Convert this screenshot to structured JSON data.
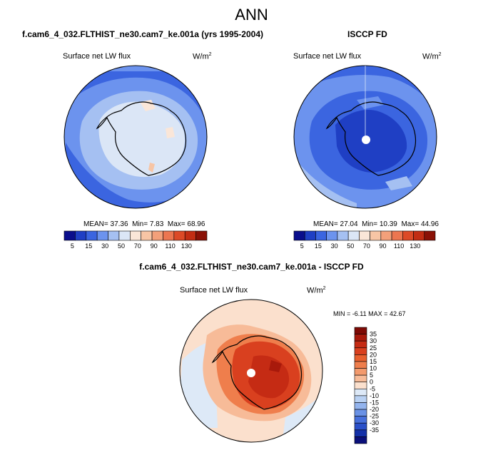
{
  "title": "ANN",
  "left_panel": {
    "case_title": "f.cam6_4_032.FLTHIST_ne30.cam7_ke.001a (yrs 1995-2004)",
    "variable": "Surface net LW flux",
    "units": "W/m",
    "units_exp": "2",
    "stats": {
      "mean_label": "MEAN=",
      "mean": "37.36",
      "min_label": "Min=",
      "min": "7.83",
      "max_label": "Max=",
      "max": "68.96"
    }
  },
  "right_panel": {
    "case_title": "ISCCP FD",
    "variable": "Surface net LW flux",
    "units": "W/m",
    "units_exp": "2",
    "stats": {
      "mean_label": "MEAN=",
      "mean": "27.04",
      "min_label": "Min=",
      "min": "10.39",
      "max_label": "Max=",
      "max": "44.96"
    }
  },
  "diff_panel": {
    "case_title": "f.cam6_4_032.FLTHIST_ne30.cam7_ke.001a - ISCCP FD",
    "variable": "Surface net LW flux",
    "units": "W/m",
    "units_exp": "2",
    "stats": {
      "min_label": "MIN =",
      "min": "-6.11",
      "max_label": "MAX =",
      "max": "42.67"
    }
  },
  "chart_data": [
    {
      "type": "heatmap",
      "projection": "south polar stereographic",
      "title": "f.cam6_4_032.FLTHIST_ne30.cam7_ke.001a (yrs 1995-2004)",
      "variable": "Surface net LW flux",
      "units": "W/m2",
      "colorbar": {
        "orientation": "horizontal",
        "levels": [
          5,
          15,
          30,
          50,
          70,
          90,
          110,
          130
        ],
        "tick_labels": [
          "5",
          "15",
          "30",
          "50",
          "70",
          "90",
          "110",
          "130"
        ],
        "colors": [
          "#0a0e8c",
          "#1f3fc4",
          "#3b65e0",
          "#6c93ee",
          "#a5c0f2",
          "#dbe6f6",
          "#fae6d8",
          "#f7c5a5",
          "#f3a07a",
          "#ec7650",
          "#dc4a27",
          "#c22d13",
          "#8a1106"
        ]
      },
      "mean": 37.36,
      "min": 7.83,
      "max": 68.96
    },
    {
      "type": "heatmap",
      "projection": "south polar stereographic",
      "title": "ISCCP FD",
      "variable": "Surface net LW flux",
      "units": "W/m2",
      "colorbar": {
        "orientation": "horizontal",
        "levels": [
          5,
          15,
          30,
          50,
          70,
          90,
          110,
          130
        ],
        "tick_labels": [
          "5",
          "15",
          "30",
          "50",
          "70",
          "90",
          "110",
          "130"
        ],
        "colors": [
          "#0a0e8c",
          "#1f3fc4",
          "#3b65e0",
          "#6c93ee",
          "#a5c0f2",
          "#dbe6f6",
          "#fae6d8",
          "#f7c5a5",
          "#f3a07a",
          "#ec7650",
          "#dc4a27",
          "#c22d13",
          "#8a1106"
        ]
      },
      "mean": 27.04,
      "min": 10.39,
      "max": 44.96
    },
    {
      "type": "heatmap",
      "projection": "south polar stereographic",
      "title": "f.cam6_4_032.FLTHIST_ne30.cam7_ke.001a - ISCCP FD",
      "variable": "Surface net LW flux",
      "units": "W/m2",
      "colorbar": {
        "orientation": "vertical",
        "levels": [
          35,
          30,
          25,
          20,
          15,
          10,
          5,
          0,
          -5,
          -10,
          -15,
          -20,
          -25,
          -30,
          -35
        ],
        "tick_labels": [
          "35",
          "30",
          "25",
          "20",
          "15",
          "10",
          "5",
          "0",
          "-5",
          "-10",
          "-15",
          "-20",
          "-25",
          "-30",
          "-35"
        ],
        "colors": [
          "#7e0a05",
          "#a8190b",
          "#c52b14",
          "#d9401f",
          "#e8602f",
          "#ef7e4c",
          "#f39a6d",
          "#f7bb98",
          "#fbe0cd",
          "#dde9f7",
          "#b9d1f3",
          "#93b4ee",
          "#6a92e6",
          "#4770dc",
          "#2a50c9",
          "#1330a8",
          "#0a0f7a"
        ]
      },
      "min": -6.11,
      "max": 42.67
    }
  ]
}
